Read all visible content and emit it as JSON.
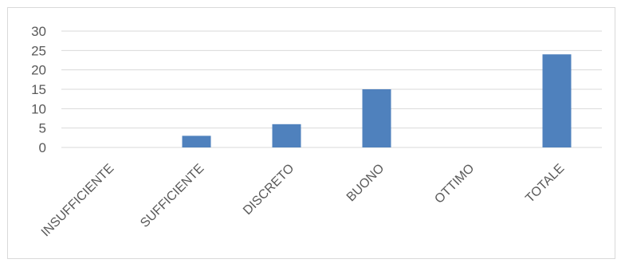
{
  "chart_data": {
    "type": "bar",
    "categories": [
      "INSUFFICIENTE",
      "SUFFICIENTE",
      "DISCRETO",
      "BUONO",
      "OTTIMO",
      "TOTALE"
    ],
    "values": [
      0,
      3,
      6,
      15,
      0,
      24
    ],
    "title": "",
    "xlabel": "",
    "ylabel": "",
    "ylim": [
      0,
      30
    ],
    "yticks": [
      0,
      5,
      10,
      15,
      20,
      25,
      30
    ],
    "grid": true,
    "legend": "none",
    "bar_color": "#4f81bd",
    "grid_color": "#d9d9d9"
  }
}
